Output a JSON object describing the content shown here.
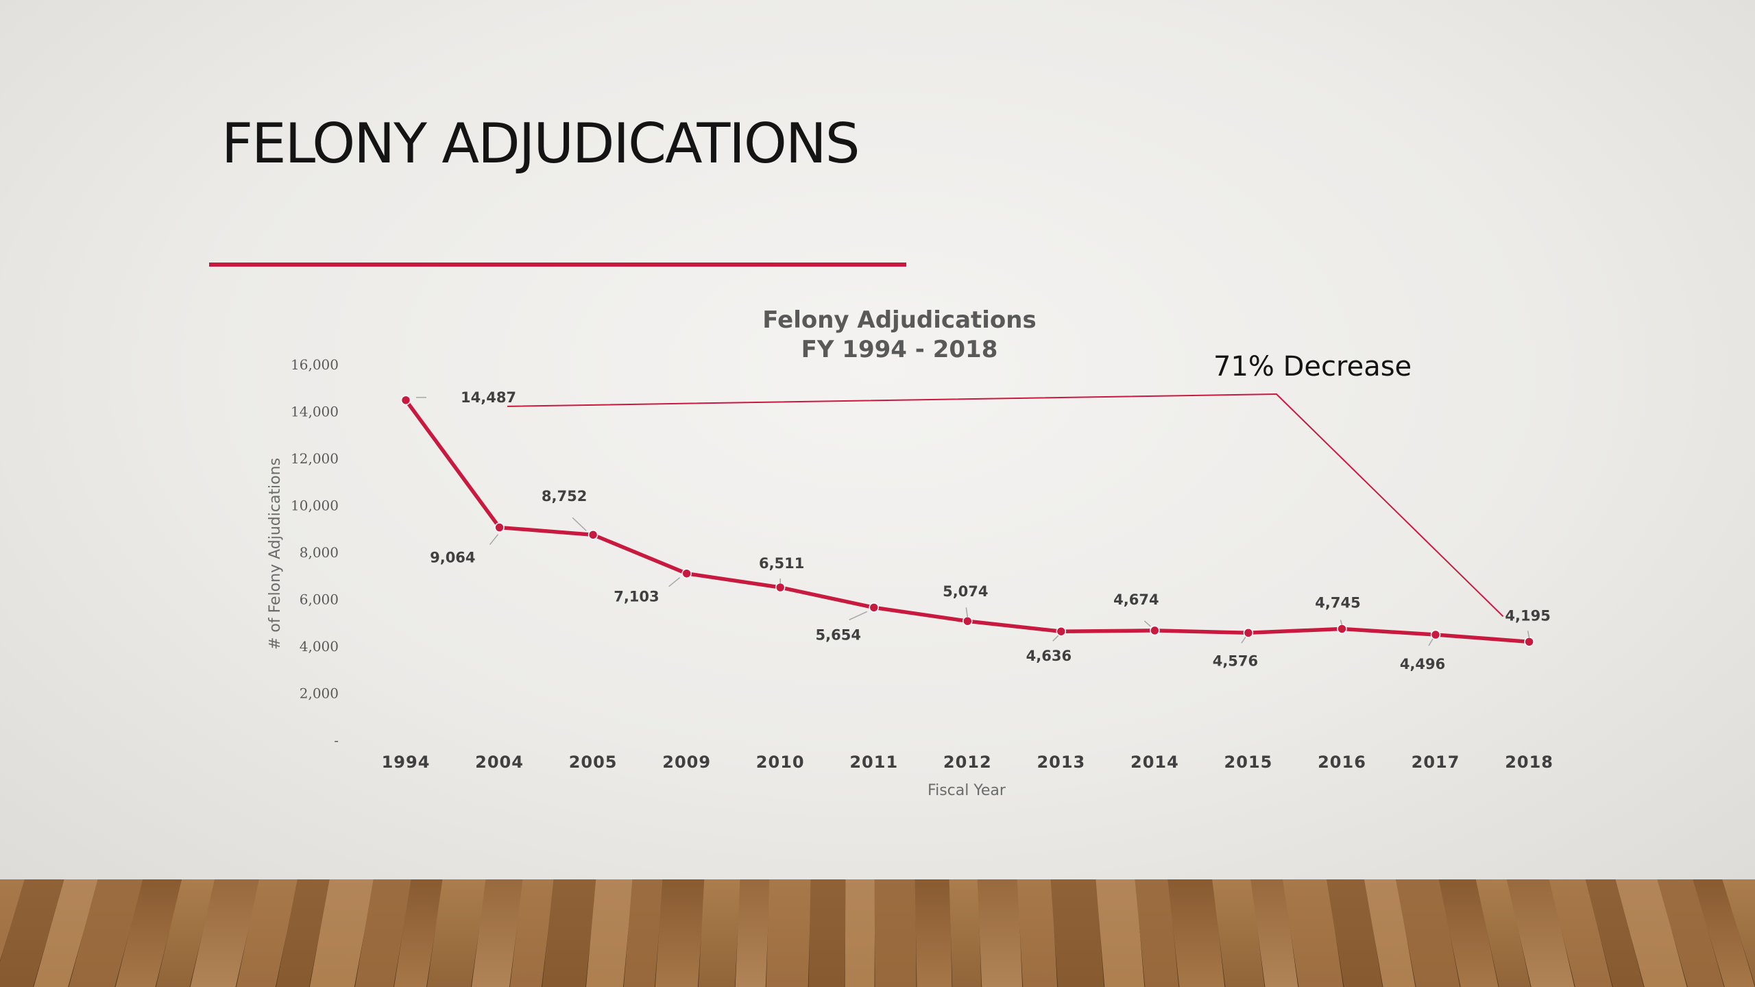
{
  "slide": {
    "title": "FELONY ADJUDICATIONS",
    "accent_color": "#c8193f",
    "floor": "wood-plank-floor"
  },
  "chart_data": {
    "type": "line",
    "title": "Felony Adjudications",
    "subtitle": "FY 1994 - 2018",
    "xlabel": "Fiscal Year",
    "ylabel": "# of Felony Adjudications",
    "categories": [
      "1994",
      "2004",
      "2005",
      "2009",
      "2010",
      "2011",
      "2012",
      "2013",
      "2014",
      "2015",
      "2016",
      "2017",
      "2018"
    ],
    "series": [
      {
        "color": "#c8193f",
        "values": [
          14487,
          9064,
          8752,
          7103,
          6511,
          5654,
          5074,
          4636,
          4674,
          4576,
          4745,
          4496,
          4195
        ],
        "labels": [
          "14,487",
          "9,064",
          "8,752",
          "7,103",
          "6,511",
          "5,654",
          "5,074",
          "4,636",
          "4,674",
          "4,576",
          "4,745",
          "4,496",
          "4,195"
        ]
      }
    ],
    "ylim": [
      0,
      16000
    ],
    "yticks": [
      0,
      2000,
      4000,
      6000,
      8000,
      10000,
      12000,
      14000,
      16000
    ],
    "ytick_labels": [
      "-",
      "2,000",
      "4,000",
      "6,000",
      "8,000",
      "10,000",
      "12,000",
      "14,000",
      "16,000"
    ],
    "grid": false,
    "legend": "none",
    "annotation": {
      "text": "71% Decrease",
      "from_category": "1994",
      "to_category": "2018"
    }
  }
}
